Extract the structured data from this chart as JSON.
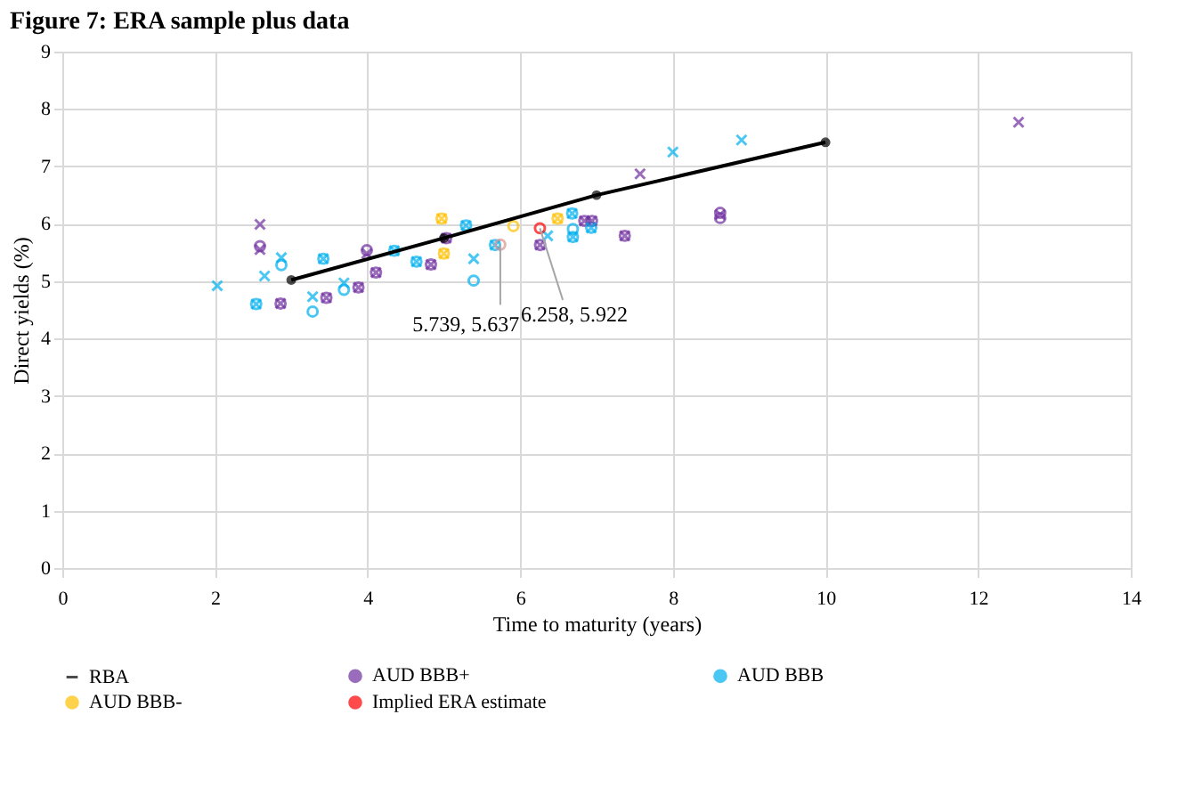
{
  "chart_data": {
    "type": "scatter",
    "title": "Figure 7: ERA sample plus data",
    "xlabel": "Time to maturity (years)",
    "ylabel": "Direct yields (%)",
    "xlim": [
      0,
      14
    ],
    "xticks": [
      0,
      2,
      4,
      6,
      8,
      10,
      12,
      14
    ],
    "ylim": [
      0,
      9
    ],
    "yticks": [
      0,
      1,
      2,
      3,
      4,
      5,
      6,
      7,
      8,
      9
    ],
    "grid": true,
    "legend": "bottom",
    "annotations": [
      {
        "text": "5.739, 5.637",
        "x": 5.739,
        "y": 5.637
      },
      {
        "text": "6.258, 5.922",
        "x": 6.258,
        "y": 5.922
      }
    ],
    "series": [
      {
        "name": "RBA",
        "type": "line",
        "marker": "circle",
        "color": "#000000",
        "x": [
          3,
          5,
          7,
          10
        ],
        "values": [
          5.02,
          5.75,
          6.5,
          7.42
        ]
      },
      {
        "name": "AUD BBB+",
        "type": "scatter",
        "marker": "circle",
        "color": "#7030a0",
        "x": [
          2.59,
          2.86,
          3.46,
          3.88,
          3.99,
          4.11,
          4.83,
          5.03,
          6.26,
          6.84,
          6.94,
          7.37,
          8.62,
          8.62
        ],
        "values": [
          5.61,
          4.61,
          4.71,
          4.89,
          5.54,
          5.15,
          5.29,
          5.75,
          5.63,
          6.05,
          6.05,
          5.79,
          6.19,
          6.1
        ]
      },
      {
        "name": "AUD BBB",
        "type": "scatter",
        "marker": "circle",
        "color": "#00b0f0",
        "x": [
          2.54,
          2.87,
          3.28,
          3.42,
          3.69,
          4.35,
          4.64,
          5.29,
          5.39,
          5.67,
          6.68,
          6.69,
          6.69,
          6.93
        ],
        "values": [
          4.6,
          5.28,
          4.47,
          5.39,
          4.85,
          5.53,
          5.34,
          5.97,
          5.01,
          5.63,
          6.18,
          5.91,
          5.77,
          5.93
        ]
      },
      {
        "name": "AUD BBB-",
        "type": "scatter",
        "marker": "circle",
        "color": "#ffc000",
        "x": [
          4.97,
          5.0,
          5.91,
          6.49
        ],
        "values": [
          6.09,
          5.48,
          5.96,
          6.09
        ]
      },
      {
        "type": "scatter",
        "marker": "cross",
        "color": "#7030a0",
        "x": [
          2.59,
          2.59,
          2.86,
          3.46,
          3.88,
          3.99,
          4.11,
          4.83,
          5.03,
          6.26,
          6.84,
          6.94,
          7.37,
          7.57,
          8.62,
          12.53
        ],
        "values": [
          5.99,
          5.55,
          4.61,
          4.71,
          4.89,
          5.48,
          5.15,
          5.29,
          5.75,
          5.63,
          6.05,
          6.05,
          5.79,
          6.87,
          6.16,
          7.77
        ]
      },
      {
        "type": "scatter",
        "marker": "cross",
        "color": "#00b0f0",
        "x": [
          2.03,
          2.54,
          2.65,
          2.87,
          3.28,
          3.42,
          3.69,
          4.35,
          4.64,
          5.29,
          5.39,
          5.67,
          6.36,
          6.68,
          6.69,
          6.93,
          8.0,
          8.9
        ],
        "values": [
          4.92,
          4.6,
          5.09,
          5.41,
          4.73,
          5.39,
          4.97,
          5.53,
          5.34,
          5.97,
          5.39,
          5.63,
          5.79,
          6.18,
          5.77,
          5.93,
          7.25,
          7.46
        ]
      },
      {
        "type": "scatter",
        "marker": "cross",
        "color": "#ffc000",
        "x": [
          4.97,
          5.0,
          6.49
        ],
        "values": [
          6.09,
          5.48,
          6.09
        ]
      },
      {
        "name": "Implied ERA estimate",
        "type": "scatter",
        "marker": "circle",
        "color": "#ff0000",
        "x": [
          6.258
        ],
        "values": [
          5.922
        ]
      },
      {
        "type": "scatter",
        "marker": "circle",
        "color": "#d99594",
        "x": [
          5.739
        ],
        "values": [
          5.637
        ]
      }
    ]
  }
}
